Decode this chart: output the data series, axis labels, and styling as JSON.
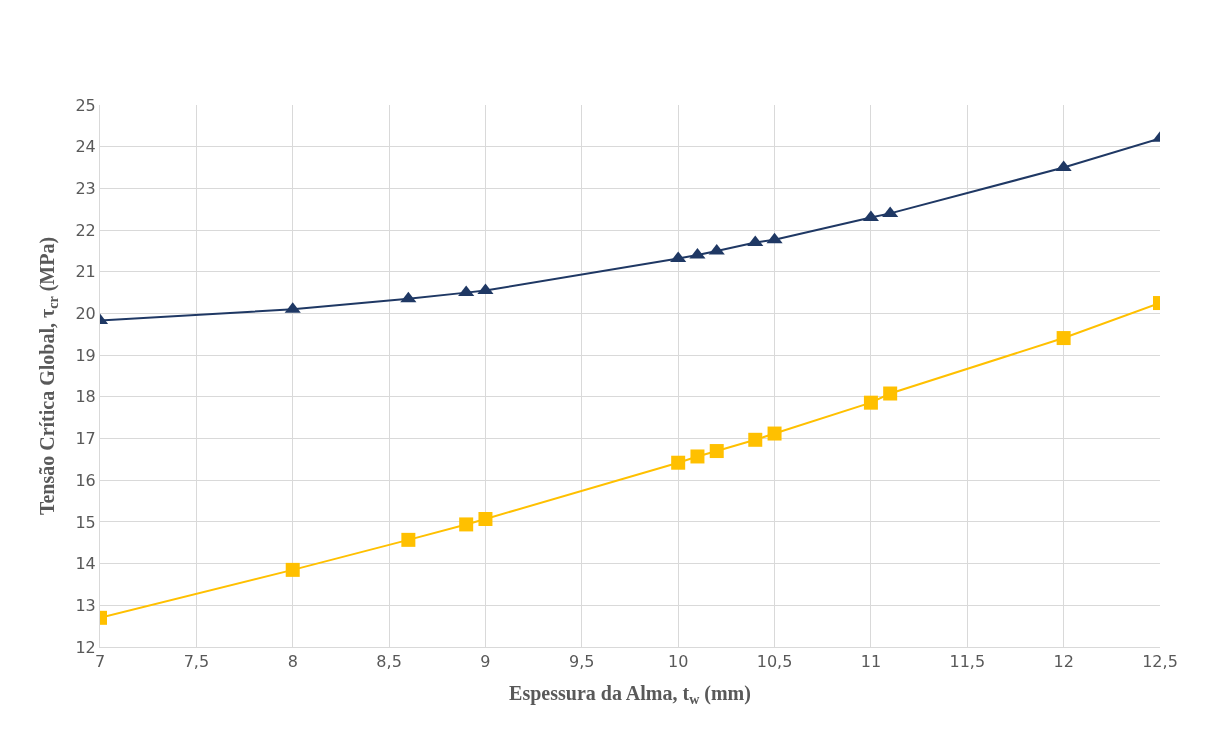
{
  "chart_data": {
    "type": "line",
    "xlabel": "Espessura da Alma, t$_{w}$ (mm)",
    "ylabel": "Tensão Crítica Global, τ$_{cr}$ (MPa)",
    "x": [
      7,
      8,
      8.6,
      8.9,
      9,
      10,
      10.1,
      10.2,
      10.4,
      10.5,
      11,
      11.1,
      12,
      12.5
    ],
    "series": [
      {
        "color": "#1f3864",
        "marker": "triangle",
        "values": [
          19.83,
          20.1,
          20.35,
          20.5,
          20.55,
          21.32,
          21.4,
          21.5,
          21.7,
          21.77,
          22.3,
          22.4,
          23.5,
          24.2
        ]
      },
      {
        "color": "#ffc000",
        "marker": "square",
        "values": [
          12.7,
          13.85,
          14.57,
          14.94,
          15.07,
          16.42,
          16.57,
          16.7,
          16.97,
          17.12,
          17.86,
          18.08,
          19.41,
          20.25
        ]
      }
    ],
    "xlim": [
      7,
      12.5
    ],
    "xticks": [
      7,
      {
        "value": 7.5,
        "label": "7,5"
      },
      8,
      {
        "value": 8.5,
        "label": "8,5"
      },
      9,
      {
        "value": 9.5,
        "label": "9,5"
      },
      10,
      {
        "value": 10.5,
        "label": "10,5"
      },
      11,
      {
        "value": 11.5,
        "label": "11,5"
      },
      12,
      {
        "value": 12.5,
        "label": "12,5"
      }
    ],
    "ylim": [
      12,
      25
    ],
    "yticks": [
      12,
      13,
      14,
      15,
      16,
      17,
      18,
      19,
      20,
      21,
      22,
      23,
      24,
      25
    ],
    "grid": true,
    "line_style": "solid"
  }
}
